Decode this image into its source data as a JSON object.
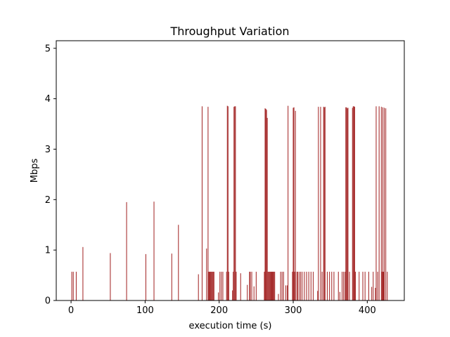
{
  "chart_data": {
    "type": "bar",
    "title": "Throughput Variation",
    "xlabel": "execution time (s)",
    "ylabel": "Mbps",
    "xlim": [
      -20,
      450
    ],
    "ylim": [
      0,
      5.15
    ],
    "xticks": [
      0,
      100,
      200,
      300,
      400
    ],
    "yticks": [
      0,
      1,
      2,
      3,
      4,
      5
    ],
    "grid": false,
    "bar_color": "#a52a2a",
    "bar_width": 1,
    "x": [
      1,
      3,
      7,
      16,
      53,
      75,
      101,
      112,
      136,
      145,
      172,
      177,
      183,
      185,
      186,
      187,
      188,
      189,
      190,
      191,
      192,
      193,
      199,
      201,
      203,
      205,
      210,
      211,
      212,
      213,
      218,
      219,
      220,
      221,
      222,
      223,
      229,
      238,
      241,
      242,
      244,
      247,
      250,
      261,
      262,
      263,
      264,
      265,
      266,
      267,
      268,
      269,
      270,
      271,
      272,
      273,
      274,
      275,
      280,
      283,
      285,
      287,
      290,
      292,
      293,
      299,
      300,
      301,
      302,
      303,
      305,
      306,
      308,
      310,
      312,
      315,
      318,
      321,
      324,
      327,
      333,
      334,
      337,
      339,
      341,
      342,
      343,
      346,
      349,
      352,
      355,
      361,
      363,
      366,
      368,
      370,
      371,
      372,
      373,
      374,
      376,
      380,
      381,
      382,
      383,
      384,
      389,
      394,
      397,
      402,
      406,
      408,
      411,
      412,
      414,
      416,
      419,
      420,
      421,
      422,
      423,
      425,
      427
    ],
    "values": [
      0.57,
      0.57,
      0.57,
      1.06,
      0.94,
      1.95,
      0.92,
      1.96,
      0.93,
      1.5,
      0.52,
      3.85,
      1.03,
      3.84,
      0.57,
      0.57,
      0.57,
      0.57,
      0.57,
      0.57,
      0.57,
      0.57,
      0.16,
      0.57,
      0.57,
      0.57,
      0.57,
      3.86,
      3.85,
      0.57,
      0.2,
      0.57,
      3.84,
      3.85,
      3.85,
      0.57,
      0.54,
      0.31,
      0.57,
      0.57,
      0.57,
      0.28,
      0.57,
      0.57,
      3.81,
      3.8,
      3.78,
      3.62,
      0.57,
      0.57,
      0.57,
      0.57,
      0.57,
      0.57,
      0.57,
      0.57,
      0.57,
      0.57,
      0.13,
      0.57,
      0.57,
      0.57,
      0.3,
      0.3,
      3.86,
      0.57,
      3.82,
      3.83,
      0.57,
      3.76,
      0.57,
      0.57,
      0.57,
      0.57,
      0.57,
      0.57,
      0.57,
      0.57,
      0.57,
      0.57,
      0.19,
      3.84,
      3.84,
      0.57,
      3.84,
      3.83,
      3.84,
      0.57,
      0.57,
      0.57,
      0.57,
      0.57,
      0.17,
      0.57,
      0.57,
      0.57,
      3.83,
      3.83,
      3.81,
      3.82,
      0.57,
      3.82,
      3.85,
      3.85,
      3.84,
      0.57,
      0.57,
      0.57,
      0.57,
      0.57,
      0.27,
      0.57,
      0.25,
      3.85,
      0.57,
      3.85,
      3.84,
      0.57,
      3.83,
      0.57,
      3.82,
      3.81,
      0.57
    ]
  }
}
